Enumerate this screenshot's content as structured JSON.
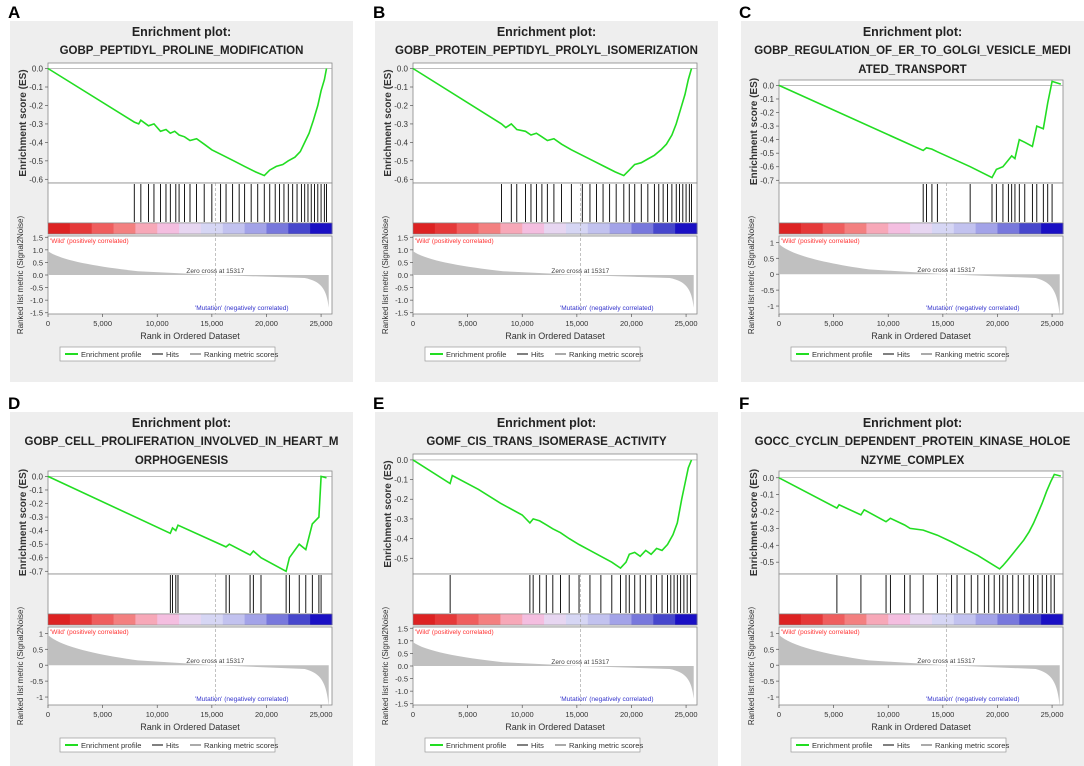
{
  "colors": {
    "panel_bg": "#eeeeee",
    "es_line": "#22dd22",
    "hits": "#000000",
    "metric_fill": "#c0c0c0",
    "wild_text": "#ff3333",
    "mutation_text": "#3333cc"
  },
  "common": {
    "plot_title_prefix": "Enrichment plot:",
    "es_ylabel": "Enrichment score (ES)",
    "rank_ylabel": "Ranked list metric (Signal2Noise)",
    "xlabel": "Rank in Ordered Dataset",
    "wild_label": "'Wild' (positively correlated)",
    "mutation_label": "'Mutation' (negatively correlated)",
    "zero_cross_label": "Zero cross at 15317",
    "zero_cross": 15317,
    "xmax": 26000,
    "legend": [
      "Enrichment profile",
      "Hits",
      "Ranking metric scores"
    ],
    "x_ticks": [
      0,
      5000,
      10000,
      15000,
      20000,
      25000
    ],
    "x_tick_labels": [
      "0",
      "5,000",
      "10,000",
      "15,000",
      "20,000",
      "25,000"
    ],
    "rank_ticks_full": [
      "1.5",
      "1.0",
      "0.5",
      "0.0",
      "-0.5",
      "-1.0",
      "-1.5"
    ],
    "rank_ticks_short": [
      "1",
      "0.5",
      "0",
      "-0.5",
      "-1"
    ]
  },
  "chart_data": [
    {
      "panel_letter": "A",
      "type": "line",
      "title": "Enrichment plot:",
      "subtitle_lines": [
        "GOBP_PEPTIDYL_PROLINE_MODIFICATION"
      ],
      "es_ticks": [
        "0.0",
        "-0.1",
        "-0.2",
        "-0.3",
        "-0.4",
        "-0.5",
        "-0.6"
      ],
      "es_ylim": [
        -0.62,
        0.03
      ],
      "es_profile": [
        [
          0,
          0
        ],
        [
          7900,
          -0.29
        ],
        [
          8300,
          -0.3
        ],
        [
          8500,
          -0.28
        ],
        [
          9200,
          -0.31
        ],
        [
          9700,
          -0.3
        ],
        [
          10300,
          -0.34
        ],
        [
          10800,
          -0.33
        ],
        [
          11200,
          -0.35
        ],
        [
          11600,
          -0.34
        ],
        [
          12000,
          -0.36
        ],
        [
          12500,
          -0.37
        ],
        [
          13000,
          -0.39
        ],
        [
          13600,
          -0.38
        ],
        [
          14300,
          -0.41
        ],
        [
          15000,
          -0.44
        ],
        [
          16000,
          -0.47
        ],
        [
          17000,
          -0.5
        ],
        [
          18000,
          -0.53
        ],
        [
          19000,
          -0.56
        ],
        [
          19800,
          -0.58
        ],
        [
          20300,
          -0.55
        ],
        [
          20900,
          -0.53
        ],
        [
          21500,
          -0.52
        ],
        [
          22000,
          -0.5
        ],
        [
          22600,
          -0.48
        ],
        [
          23100,
          -0.45
        ],
        [
          23500,
          -0.4
        ],
        [
          23900,
          -0.35
        ],
        [
          24300,
          -0.28
        ],
        [
          24700,
          -0.2
        ],
        [
          25000,
          -0.12
        ],
        [
          25300,
          -0.06
        ],
        [
          25500,
          0
        ]
      ],
      "hits": [
        7900,
        8500,
        9200,
        9700,
        10300,
        10800,
        11200,
        11700,
        12000,
        12500,
        13000,
        13600,
        14300,
        15000,
        15800,
        16300,
        16900,
        17500,
        18000,
        18600,
        19200,
        19800,
        20300,
        20800,
        21200,
        21600,
        22000,
        22400,
        22800,
        23200,
        23500,
        23800,
        24100,
        24400,
        24700,
        25000,
        25300,
        25500
      ]
    },
    {
      "panel_letter": "B",
      "type": "line",
      "title": "Enrichment plot:",
      "subtitle_lines": [
        "GOBP_PROTEIN_PEPTIDYL_PROLYL_ISOMERIZATION"
      ],
      "es_ticks": [
        "0.0",
        "-0.1",
        "-0.2",
        "-0.3",
        "-0.4",
        "-0.5",
        "-0.6"
      ],
      "es_ylim": [
        -0.62,
        0.03
      ],
      "es_profile": [
        [
          0,
          0
        ],
        [
          8100,
          -0.3
        ],
        [
          8500,
          -0.32
        ],
        [
          9000,
          -0.3
        ],
        [
          9500,
          -0.33
        ],
        [
          10300,
          -0.34
        ],
        [
          10800,
          -0.36
        ],
        [
          11300,
          -0.35
        ],
        [
          11800,
          -0.37
        ],
        [
          12300,
          -0.39
        ],
        [
          12900,
          -0.38
        ],
        [
          13600,
          -0.41
        ],
        [
          14500,
          -0.44
        ],
        [
          15500,
          -0.47
        ],
        [
          16500,
          -0.5
        ],
        [
          17500,
          -0.53
        ],
        [
          18500,
          -0.56
        ],
        [
          19300,
          -0.58
        ],
        [
          19800,
          -0.55
        ],
        [
          20300,
          -0.52
        ],
        [
          20900,
          -0.51
        ],
        [
          21500,
          -0.49
        ],
        [
          22100,
          -0.47
        ],
        [
          22700,
          -0.44
        ],
        [
          23200,
          -0.41
        ],
        [
          23700,
          -0.36
        ],
        [
          24100,
          -0.3
        ],
        [
          24500,
          -0.22
        ],
        [
          24900,
          -0.14
        ],
        [
          25200,
          -0.06
        ],
        [
          25500,
          0
        ]
      ],
      "hits": [
        8100,
        9000,
        9500,
        10300,
        10800,
        11300,
        11800,
        12300,
        12900,
        13600,
        14500,
        15500,
        16200,
        16800,
        17400,
        18000,
        18600,
        19300,
        19800,
        20300,
        20900,
        21500,
        22100,
        22500,
        22900,
        23300,
        23700,
        24100,
        24400,
        24700,
        25000,
        25300,
        25500
      ]
    },
    {
      "panel_letter": "C",
      "type": "line",
      "title": "Enrichment plot:",
      "subtitle_lines": [
        "GOBP_REGULATION_OF_ER_TO_GOLGI_VESICLE_MEDI",
        "ATED_TRANSPORT"
      ],
      "es_ticks": [
        "0.0",
        "-0.1",
        "-0.2",
        "-0.3",
        "-0.4",
        "-0.5",
        "-0.6",
        "-0.7"
      ],
      "es_ylim": [
        -0.72,
        0.04
      ],
      "es_profile": [
        [
          0,
          0
        ],
        [
          13200,
          -0.48
        ],
        [
          13500,
          -0.46
        ],
        [
          14000,
          -0.47
        ],
        [
          14500,
          -0.49
        ],
        [
          17500,
          -0.6
        ],
        [
          19500,
          -0.68
        ],
        [
          19900,
          -0.62
        ],
        [
          20500,
          -0.6
        ],
        [
          21000,
          -0.55
        ],
        [
          21300,
          -0.52
        ],
        [
          21600,
          -0.54
        ],
        [
          22000,
          -0.4
        ],
        [
          22500,
          -0.42
        ],
        [
          23200,
          -0.45
        ],
        [
          23600,
          -0.3
        ],
        [
          24200,
          -0.32
        ],
        [
          24600,
          -0.13
        ],
        [
          25000,
          0.03
        ],
        [
          25800,
          0.01
        ]
      ],
      "hits": [
        13200,
        13500,
        14000,
        14500,
        17500,
        19500,
        19900,
        20500,
        21000,
        21300,
        21600,
        22000,
        22500,
        23200,
        23600,
        24200,
        24600,
        25000
      ]
    },
    {
      "panel_letter": "D",
      "type": "line",
      "title": "Enrichment plot:",
      "subtitle_lines": [
        "GOBP_CELL_PROLIFERATION_INVOLVED_IN_HEART_M",
        "ORPHOGENESIS"
      ],
      "es_ticks": [
        "0.0",
        "-0.1",
        "-0.2",
        "-0.3",
        "-0.4",
        "-0.5",
        "-0.6",
        "-0.7"
      ],
      "es_ylim": [
        -0.72,
        0.04
      ],
      "es_profile": [
        [
          0,
          0
        ],
        [
          11200,
          -0.42
        ],
        [
          11400,
          -0.38
        ],
        [
          11700,
          -0.4
        ],
        [
          11900,
          -0.36
        ],
        [
          16300,
          -0.52
        ],
        [
          16600,
          -0.5
        ],
        [
          18500,
          -0.58
        ],
        [
          18800,
          -0.55
        ],
        [
          19500,
          -0.6
        ],
        [
          21800,
          -0.7
        ],
        [
          22100,
          -0.6
        ],
        [
          23000,
          -0.5
        ],
        [
          23600,
          -0.54
        ],
        [
          24200,
          -0.35
        ],
        [
          24800,
          -0.3
        ],
        [
          25000,
          0
        ],
        [
          25500,
          -0.01
        ]
      ],
      "hits": [
        11200,
        11400,
        11700,
        11900,
        16300,
        16600,
        18500,
        18800,
        19500,
        21800,
        22100,
        23000,
        23600,
        24200,
        24800,
        25000
      ]
    },
    {
      "panel_letter": "E",
      "type": "line",
      "title": "Enrichment plot:",
      "subtitle_lines": [
        "GOMF_CIS_TRANS_ISOMERASE_ACTIVITY"
      ],
      "es_ticks": [
        "0.0",
        "-0.1",
        "-0.2",
        "-0.3",
        "-0.4",
        "-0.5"
      ],
      "es_ylim": [
        -0.58,
        0.03
      ],
      "es_profile": [
        [
          0,
          0
        ],
        [
          3400,
          -0.12
        ],
        [
          3600,
          -0.08
        ],
        [
          6000,
          -0.15
        ],
        [
          8000,
          -0.22
        ],
        [
          10000,
          -0.28
        ],
        [
          10700,
          -0.32
        ],
        [
          11000,
          -0.3
        ],
        [
          11600,
          -0.31
        ],
        [
          12200,
          -0.33
        ],
        [
          12800,
          -0.35
        ],
        [
          13500,
          -0.37
        ],
        [
          14300,
          -0.4
        ],
        [
          15200,
          -0.43
        ],
        [
          16200,
          -0.46
        ],
        [
          17200,
          -0.49
        ],
        [
          18200,
          -0.52
        ],
        [
          19000,
          -0.55
        ],
        [
          19500,
          -0.52
        ],
        [
          19800,
          -0.48
        ],
        [
          20300,
          -0.47
        ],
        [
          20800,
          -0.49
        ],
        [
          21300,
          -0.46
        ],
        [
          21800,
          -0.48
        ],
        [
          22300,
          -0.45
        ],
        [
          22800,
          -0.46
        ],
        [
          23300,
          -0.43
        ],
        [
          23800,
          -0.38
        ],
        [
          24200,
          -0.32
        ],
        [
          24600,
          -0.2
        ],
        [
          24900,
          -0.12
        ],
        [
          25200,
          -0.04
        ],
        [
          25500,
          0
        ]
      ],
      "hits": [
        3400,
        10700,
        11000,
        11600,
        12200,
        12800,
        13500,
        14300,
        15200,
        16200,
        17200,
        18200,
        19000,
        19500,
        19800,
        20300,
        20800,
        21300,
        21800,
        22300,
        22800,
        23300,
        23600,
        23900,
        24200,
        24500,
        24800,
        25100,
        25400
      ]
    },
    {
      "panel_letter": "F",
      "type": "line",
      "title": "Enrichment plot:",
      "subtitle_lines": [
        "GOCC_CYCLIN_DEPENDENT_PROTEIN_KINASE_HOLOE",
        "NZYME_COMPLEX"
      ],
      "es_ticks": [
        "0.0",
        "-0.1",
        "-0.2",
        "-0.3",
        "-0.4",
        "-0.5"
      ],
      "es_ylim": [
        -0.57,
        0.04
      ],
      "es_profile": [
        [
          0,
          0
        ],
        [
          5300,
          -0.18
        ],
        [
          5500,
          -0.16
        ],
        [
          7500,
          -0.22
        ],
        [
          7800,
          -0.19
        ],
        [
          9800,
          -0.26
        ],
        [
          10200,
          -0.24
        ],
        [
          11500,
          -0.28
        ],
        [
          12000,
          -0.3
        ],
        [
          13200,
          -0.31
        ],
        [
          14500,
          -0.34
        ],
        [
          15800,
          -0.38
        ],
        [
          17000,
          -0.42
        ],
        [
          18200,
          -0.46
        ],
        [
          19200,
          -0.5
        ],
        [
          20200,
          -0.54
        ],
        [
          20500,
          -0.52
        ],
        [
          20900,
          -0.49
        ],
        [
          21400,
          -0.45
        ],
        [
          21900,
          -0.41
        ],
        [
          22400,
          -0.37
        ],
        [
          22900,
          -0.32
        ],
        [
          23300,
          -0.27
        ],
        [
          23700,
          -0.21
        ],
        [
          24100,
          -0.15
        ],
        [
          24500,
          -0.08
        ],
        [
          24900,
          -0.02
        ],
        [
          25200,
          0.02
        ],
        [
          25800,
          0.01
        ]
      ],
      "hits": [
        5300,
        7500,
        9800,
        10200,
        11500,
        12000,
        13200,
        14500,
        15800,
        16300,
        17000,
        17600,
        18200,
        18800,
        19200,
        19700,
        20200,
        20500,
        20900,
        21400,
        21900,
        22400,
        22900,
        23300,
        23700,
        24100,
        24500,
        24900,
        25200
      ]
    }
  ]
}
